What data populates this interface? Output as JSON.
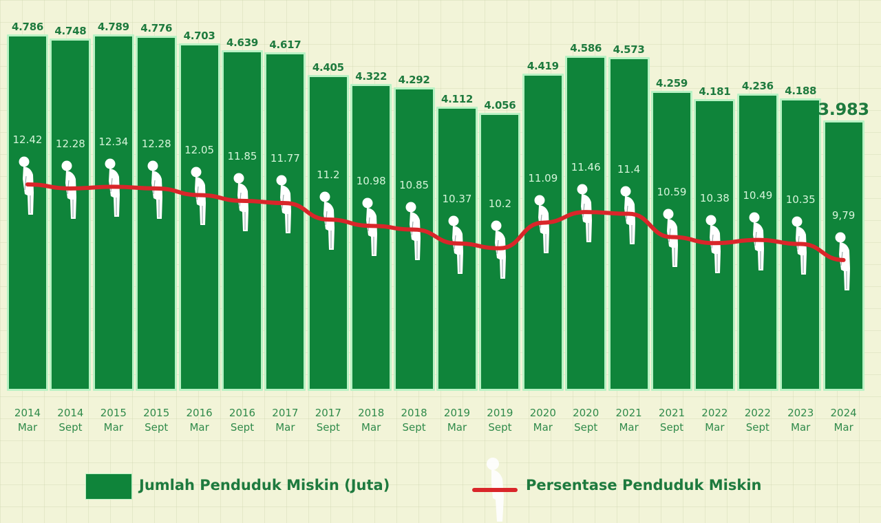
{
  "chart_data": {
    "type": "bar",
    "title": "",
    "xlabel": "",
    "ylabel": "",
    "categories": [
      "2014 Mar",
      "2014 Sept",
      "2015 Mar",
      "2015 Sept",
      "2016 Mar",
      "2016 Sept",
      "2017 Mar",
      "2017 Sept",
      "2018 Mar",
      "2018 Sept",
      "2019 Mar",
      "2019 Sept",
      "2020 Mar",
      "2020 Sept",
      "2021 Mar",
      "2021 Sept",
      "2022 Mar",
      "2022 Sept",
      "2023 Mar",
      "2024 Mar"
    ],
    "x_labels": [
      {
        "year": "2014",
        "period": "Mar"
      },
      {
        "year": "2014",
        "period": "Sept"
      },
      {
        "year": "2015",
        "period": "Mar"
      },
      {
        "year": "2015",
        "period": "Sept"
      },
      {
        "year": "2016",
        "period": "Mar"
      },
      {
        "year": "2016",
        "period": "Sept"
      },
      {
        "year": "2017",
        "period": "Mar"
      },
      {
        "year": "2017",
        "period": "Sept"
      },
      {
        "year": "2018",
        "period": "Mar"
      },
      {
        "year": "2018",
        "period": "Sept"
      },
      {
        "year": "2019",
        "period": "Mar"
      },
      {
        "year": "2019",
        "period": "Sept"
      },
      {
        "year": "2020",
        "period": "Mar"
      },
      {
        "year": "2020",
        "period": "Sept"
      },
      {
        "year": "2021",
        "period": "Mar"
      },
      {
        "year": "2021",
        "period": "Sept"
      },
      {
        "year": "2022",
        "period": "Mar"
      },
      {
        "year": "2022",
        "period": "Sept"
      },
      {
        "year": "2023",
        "period": "Mar"
      },
      {
        "year": "2024",
        "period": "Mar"
      }
    ],
    "series": [
      {
        "name": "Jumlah Penduduk Miskin (Juta)",
        "type": "bar",
        "color": "#0f843a",
        "values": [
          4.786,
          4.748,
          4.789,
          4.776,
          4.703,
          4.639,
          4.617,
          4.405,
          4.322,
          4.292,
          4.112,
          4.056,
          4.419,
          4.586,
          4.573,
          4.259,
          4.181,
          4.236,
          4.188,
          3.983
        ],
        "labels": [
          "4.786",
          "4.748",
          "4.789",
          "4.776",
          "4.703",
          "4.639",
          "4.617",
          "4.405",
          "4.322",
          "4.292",
          "4.112",
          "4.056",
          "4.419",
          "4.586",
          "4.573",
          "4.259",
          "4.181",
          "4.236",
          "4.188",
          "3.983"
        ]
      },
      {
        "name": "Persentase Penduduk Miskin",
        "type": "line",
        "color": "#d9262a",
        "values": [
          12.42,
          12.28,
          12.34,
          12.28,
          12.05,
          11.85,
          11.77,
          11.2,
          10.98,
          10.85,
          10.37,
          10.2,
          11.09,
          11.46,
          11.4,
          10.59,
          10.38,
          10.49,
          10.35,
          9.79
        ],
        "labels": [
          "12.42",
          "12.28",
          "12.34",
          "12.28",
          "12.05",
          "11.85",
          "11.77",
          "11.2",
          "10.98",
          "10.85",
          "10.37",
          "10.2",
          "11.09",
          "11.46",
          "11.4",
          "10.59",
          "10.38",
          "10.49",
          "10.35",
          "9,79"
        ]
      }
    ],
    "legend": {
      "position": "bottom",
      "entries": [
        {
          "label": "Jumlah Penduduk Miskin (Juta)",
          "marker": "green-square"
        },
        {
          "label": "Persentase Penduduk Miskin",
          "marker": "red-line"
        }
      ]
    },
    "grid": false
  },
  "legend": {
    "bar_label": "Jumlah Penduduk Miskin (Juta)",
    "line_label": "Persentase Penduduk Miskin"
  },
  "colors": {
    "background": "#f2f4d8",
    "bar": "#0f843a",
    "bar_border": "#b9f2c4",
    "line": "#d9262a",
    "value_text": "#1e7a3e",
    "pct_text": "#d6f5da"
  },
  "icons": {
    "figure": "bowing-person-icon"
  }
}
